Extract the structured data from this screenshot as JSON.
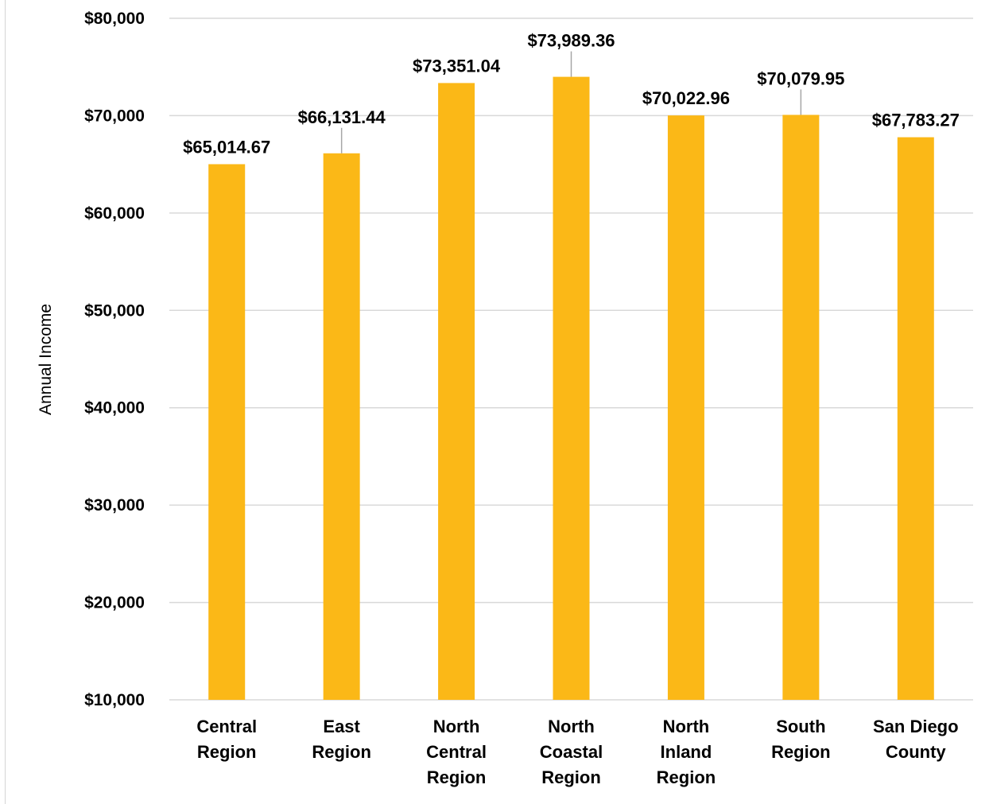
{
  "colors": {
    "bar": "#FBB817",
    "grid": "#d9d9d9",
    "leader": "#a6a6a6",
    "text": "#000000"
  },
  "chart_data": {
    "type": "bar",
    "title": "",
    "xlabel": "",
    "ylabel": "Annual Income",
    "ylim": [
      10000,
      80000
    ],
    "yticks": [
      10000,
      20000,
      30000,
      40000,
      50000,
      60000,
      70000,
      80000
    ],
    "ytick_labels": [
      "$10,000",
      "$20,000",
      "$30,000",
      "$40,000",
      "$50,000",
      "$60,000",
      "$70,000",
      "$80,000"
    ],
    "grid": true,
    "legend": "none",
    "categories": [
      [
        "Central",
        "Region"
      ],
      [
        "East",
        "Region"
      ],
      [
        "North",
        "Central",
        "Region"
      ],
      [
        "North",
        "Coastal",
        "Region"
      ],
      [
        "North",
        "Inland",
        "Region"
      ],
      [
        "South",
        "Region"
      ],
      [
        "San Diego",
        "County"
      ]
    ],
    "values": [
      65014.67,
      66131.44,
      73351.04,
      73989.36,
      70022.96,
      70079.95,
      67783.27
    ],
    "data_labels": [
      "$65,014.67",
      "$66,131.44",
      "$73,351.04",
      "$73,989.36",
      "$70,022.96",
      "$70,079.95",
      "$67,783.27"
    ]
  }
}
